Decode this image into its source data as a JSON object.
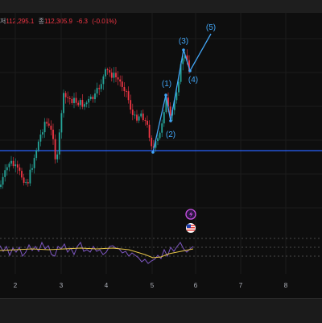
{
  "ohlc": {
    "low_label": "저",
    "low_value": "112,295.1",
    "close_label": "종",
    "close_value": "112,305.9",
    "change": "-6.3",
    "change_pct": "(-0.01%)"
  },
  "wave_labels": [
    "(1)",
    "(2)",
    "(3)",
    "(4)",
    "(5)"
  ],
  "x_axis_ticks": [
    "2",
    "3",
    "4",
    "5",
    "6",
    "7",
    "8"
  ],
  "colors": {
    "up": "#26a69a",
    "down": "#f23645",
    "support_line": "#2962ff",
    "wave": "#42a5f5",
    "osc_main": "#7e57c2",
    "osc_signal": "#e6c449"
  },
  "icons": [
    "lightning-event-icon",
    "us-flag-event-icon"
  ]
}
